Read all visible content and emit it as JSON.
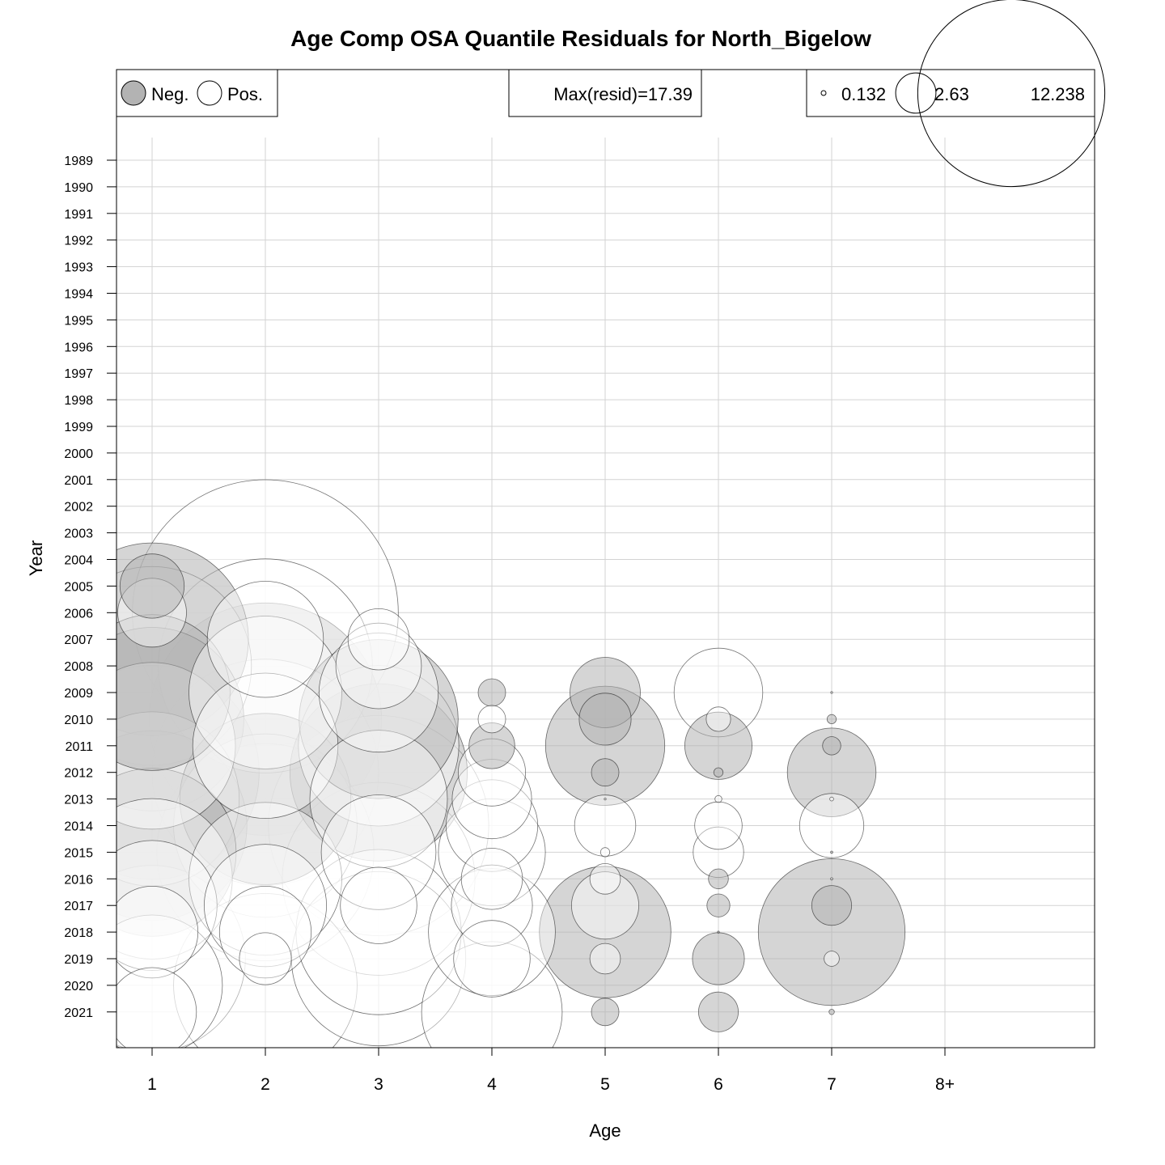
{
  "chart_data": {
    "type": "scatter",
    "title": "Age Comp OSA Quantile Residuals for North_Bigelow",
    "xlabel": "Age",
    "ylabel": "Year",
    "x_categories": [
      "1",
      "2",
      "3",
      "4",
      "5",
      "6",
      "7",
      "8+"
    ],
    "years": [
      "1989",
      "1990",
      "1991",
      "1992",
      "1993",
      "1994",
      "1995",
      "1996",
      "1997",
      "1998",
      "1999",
      "2000",
      "2001",
      "2002",
      "2003",
      "2004",
      "2005",
      "2006",
      "2007",
      "2008",
      "2009",
      "2010",
      "2011",
      "2012",
      "2013",
      "2014",
      "2015",
      "2016",
      "2017",
      "2018",
      "2019",
      "2020",
      "2021"
    ],
    "grid": true,
    "legend_sign": {
      "neg_label": "Neg.",
      "pos_label": "Pos.",
      "placement": "top-left",
      "neg_color": "#b3b3b3",
      "pos_color": "#ffffff"
    },
    "legend_max": {
      "text": "Max(resid)=17.39",
      "placement": "top-center"
    },
    "legend_size": {
      "values": [
        0.132,
        2.63,
        12.238
      ],
      "labels": [
        "0.132",
        "2.63",
        "12.238"
      ],
      "placement": "top-right"
    },
    "neg_color": "#b3b3b3",
    "pos_color": "#ffffff",
    "residuals": [
      {
        "age": "1",
        "year": "2005",
        "value": -4.2
      },
      {
        "age": "1",
        "year": "2006",
        "value": 4.5
      },
      {
        "age": "1",
        "year": "2007",
        "value": -12.6
      },
      {
        "age": "1",
        "year": "2008",
        "value": 13.0
      },
      {
        "age": "1",
        "year": "2009",
        "value": -10.2
      },
      {
        "age": "1",
        "year": "2010",
        "value": -12.0
      },
      {
        "age": "1",
        "year": "2011",
        "value": 10.9
      },
      {
        "age": "1",
        "year": "2012",
        "value": -14.0
      },
      {
        "age": "1",
        "year": "2013",
        "value": 11.4
      },
      {
        "age": "1",
        "year": "2014",
        "value": -12.4
      },
      {
        "age": "1",
        "year": "2015",
        "value": -11.0
      },
      {
        "age": "1",
        "year": "2016",
        "value": 10.5
      },
      {
        "age": "1",
        "year": "2017",
        "value": 8.5
      },
      {
        "age": "1",
        "year": "2018",
        "value": 6.0
      },
      {
        "age": "1",
        "year": "2019",
        "value": 12.2
      },
      {
        "age": "1",
        "year": "2020",
        "value": 9.2
      },
      {
        "age": "1",
        "year": "2021",
        "value": 5.8
      },
      {
        "age": "2",
        "year": "2006",
        "value": 17.39
      },
      {
        "age": "2",
        "year": "2007",
        "value": 7.6
      },
      {
        "age": "2",
        "year": "2008",
        "value": 14.0
      },
      {
        "age": "2",
        "year": "2009",
        "value": 10.0
      },
      {
        "age": "2",
        "year": "2010",
        "value": -15.2
      },
      {
        "age": "2",
        "year": "2011",
        "value": 9.5
      },
      {
        "age": "2",
        "year": "2012",
        "value": 14.8
      },
      {
        "age": "2",
        "year": "2013",
        "value": -11.2
      },
      {
        "age": "2",
        "year": "2014",
        "value": 12.0
      },
      {
        "age": "2",
        "year": "2015",
        "value": 14.2
      },
      {
        "age": "2",
        "year": "2016",
        "value": 10.0
      },
      {
        "age": "2",
        "year": "2017",
        "value": 8.0
      },
      {
        "age": "2",
        "year": "2018",
        "value": 6.0
      },
      {
        "age": "2",
        "year": "2019",
        "value": 3.4
      },
      {
        "age": "2",
        "year": "2020",
        "value": 12.0
      },
      {
        "age": "3",
        "year": "2007",
        "value": 4.0
      },
      {
        "age": "3",
        "year": "2008",
        "value": 5.6
      },
      {
        "age": "3",
        "year": "2009",
        "value": 7.8
      },
      {
        "age": "3",
        "year": "2010",
        "value": -10.4
      },
      {
        "age": "3",
        "year": "2011",
        "value": 10.5
      },
      {
        "age": "3",
        "year": "2012",
        "value": -11.6
      },
      {
        "age": "3",
        "year": "2013",
        "value": 9.0
      },
      {
        "age": "3",
        "year": "2014",
        "value": 14.4
      },
      {
        "age": "3",
        "year": "2015",
        "value": 7.5
      },
      {
        "age": "3",
        "year": "2016",
        "value": 12.6
      },
      {
        "age": "3",
        "year": "2017",
        "value": 5.0
      },
      {
        "age": "3",
        "year": "2018",
        "value": 10.8
      },
      {
        "age": "3",
        "year": "2019",
        "value": 11.4
      },
      {
        "age": "4",
        "year": "2009",
        "value": -1.8
      },
      {
        "age": "4",
        "year": "2010",
        "value": 1.8
      },
      {
        "age": "4",
        "year": "2011",
        "value": -3.0
      },
      {
        "age": "4",
        "year": "2012",
        "value": 4.4
      },
      {
        "age": "4",
        "year": "2013",
        "value": 5.2
      },
      {
        "age": "4",
        "year": "2014",
        "value": 6.0
      },
      {
        "age": "4",
        "year": "2015",
        "value": 7.0
      },
      {
        "age": "4",
        "year": "2016",
        "value": 4.0
      },
      {
        "age": "4",
        "year": "2017",
        "value": 5.3
      },
      {
        "age": "4",
        "year": "2018",
        "value": 8.3
      },
      {
        "age": "4",
        "year": "2019",
        "value": 5.0
      },
      {
        "age": "4",
        "year": "2021",
        "value": 9.2
      },
      {
        "age": "5",
        "year": "2009",
        "value": -4.6
      },
      {
        "age": "5",
        "year": "2010",
        "value": -3.4
      },
      {
        "age": "5",
        "year": "2011",
        "value": -7.8
      },
      {
        "age": "5",
        "year": "2012",
        "value": -1.8
      },
      {
        "age": "5",
        "year": "2013",
        "value": 0.13
      },
      {
        "age": "5",
        "year": "2014",
        "value": 4.0
      },
      {
        "age": "5",
        "year": "2015",
        "value": 0.6
      },
      {
        "age": "5",
        "year": "2016",
        "value": 2.0
      },
      {
        "age": "5",
        "year": "2017",
        "value": 4.4
      },
      {
        "age": "5",
        "year": "2018",
        "value": -8.6
      },
      {
        "age": "5",
        "year": "2019",
        "value": 2.0
      },
      {
        "age": "5",
        "year": "2021",
        "value": -1.8
      },
      {
        "age": "6",
        "year": "2009",
        "value": 5.8
      },
      {
        "age": "6",
        "year": "2010",
        "value": 1.6
      },
      {
        "age": "6",
        "year": "2011",
        "value": -4.4
      },
      {
        "age": "6",
        "year": "2012",
        "value": -0.6
      },
      {
        "age": "6",
        "year": "2013",
        "value": 0.45
      },
      {
        "age": "6",
        "year": "2014",
        "value": 3.1
      },
      {
        "age": "6",
        "year": "2015",
        "value": 3.3
      },
      {
        "age": "6",
        "year": "2016",
        "value": -1.3
      },
      {
        "age": "6",
        "year": "2017",
        "value": -1.5
      },
      {
        "age": "6",
        "year": "2018",
        "value": -0.12
      },
      {
        "age": "6",
        "year": "2019",
        "value": -3.4
      },
      {
        "age": "6",
        "year": "2021",
        "value": -2.6
      },
      {
        "age": "7",
        "year": "2009",
        "value": 0.03
      },
      {
        "age": "7",
        "year": "2010",
        "value": -0.6
      },
      {
        "age": "7",
        "year": "2011",
        "value": -1.2
      },
      {
        "age": "7",
        "year": "2012",
        "value": -5.8
      },
      {
        "age": "7",
        "year": "2013",
        "value": 0.25
      },
      {
        "age": "7",
        "year": "2014",
        "value": 4.2
      },
      {
        "age": "7",
        "year": "2015",
        "value": -0.15
      },
      {
        "age": "7",
        "year": "2016",
        "value": 0.15
      },
      {
        "age": "7",
        "year": "2017",
        "value": -2.6
      },
      {
        "age": "7",
        "year": "2018",
        "value": -9.6
      },
      {
        "age": "7",
        "year": "2019",
        "value": 1.0
      },
      {
        "age": "7",
        "year": "2021",
        "value": -0.35
      }
    ]
  }
}
